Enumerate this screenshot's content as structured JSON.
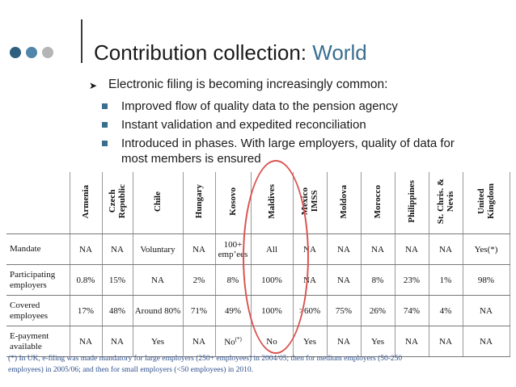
{
  "colors": {
    "dot_dark": "#2f5f7e",
    "dot_mid": "#4f86aa",
    "dot_light": "#b5b5b5",
    "accent": "#3a6e8f",
    "oval": "#d9534f"
  },
  "title": {
    "main": "Contribution collection:",
    "accent": "World"
  },
  "bullets": {
    "level1": "Electronic filing is becoming increasingly common:",
    "level2": [
      "Improved flow of quality data to the pension agency",
      "Instant validation and expedited reconciliation",
      "Introduced in phases. With large employers, quality of data for most members is ensured"
    ]
  },
  "table": {
    "columns": [
      "Armenia",
      "Czech\nRepublic",
      "Chile",
      "Hungary",
      "Kosovo",
      "Maldives",
      "Mexico\nIMSS",
      "Moldova",
      "Morocco",
      "Philippines",
      "St. Chris. &\nNevis",
      "United\nKingdom"
    ],
    "rows": [
      {
        "label": "Mandate",
        "cells": [
          "NA",
          "NA",
          "Voluntary",
          "NA",
          "100+ emp’ees",
          "All",
          "NA",
          "NA",
          "NA",
          "NA",
          "NA",
          "Yes(*)"
        ]
      },
      {
        "label": "Participating employers",
        "cells": [
          "0.8%",
          "15%",
          "NA",
          "2%",
          "8%",
          "100%",
          "NA",
          "NA",
          "8%",
          "23%",
          "1%",
          "98%"
        ]
      },
      {
        "label": "Covered employees",
        "cells": [
          "17%",
          "48%",
          "Around 80%",
          "71%",
          "49%",
          "100%",
          ">60%",
          "75%",
          "26%",
          "74%",
          "4%",
          "NA"
        ]
      },
      {
        "label": "E-payment available",
        "cells": [
          "NA",
          "NA",
          "Yes",
          "NA",
          "No",
          "No",
          "Yes",
          "NA",
          "Yes",
          "NA",
          "NA",
          "NA"
        ]
      }
    ],
    "kosovo_note_mark": "(*)"
  },
  "footnote": "(*) In UK, e-filing was made mandatory for large employers (250+ employees) in 2004/05; then for medium employers (50-250 employees) in 2005/06; and then for small employers (<50 employees) in 2010."
}
